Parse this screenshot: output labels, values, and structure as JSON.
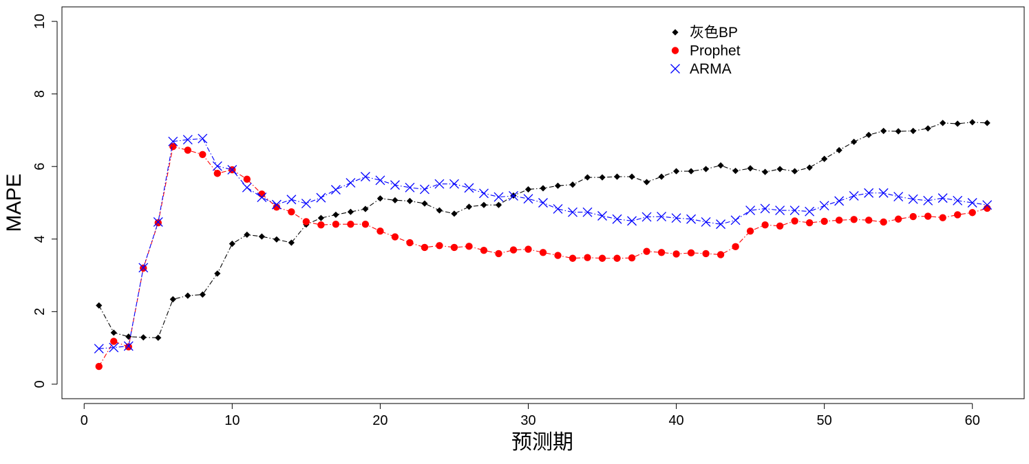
{
  "chart_data": {
    "type": "line",
    "xlabel": "预测期",
    "ylabel": "MAPE",
    "xlim": [
      -1.5,
      63.5
    ],
    "ylim": [
      -0.4,
      10.4
    ],
    "x_ticks": [
      0,
      10,
      20,
      30,
      40,
      50,
      60
    ],
    "y_ticks": [
      0,
      2,
      4,
      6,
      8,
      10
    ],
    "grid": false,
    "legend_position": "top-right",
    "series": [
      {
        "name": "灰色BP",
        "color": "#000000",
        "marker": "diamond",
        "line_style": "dashdot",
        "x": [
          1,
          2,
          3,
          4,
          5,
          6,
          7,
          8,
          9,
          10,
          11,
          12,
          13,
          14,
          15,
          16,
          17,
          18,
          19,
          20,
          21,
          22,
          23,
          24,
          25,
          26,
          27,
          28,
          29,
          30,
          31,
          32,
          33,
          34,
          35,
          36,
          37,
          38,
          39,
          40,
          41,
          42,
          43,
          44,
          45,
          46,
          47,
          48,
          49,
          50,
          51,
          52,
          53,
          54,
          55,
          56,
          57,
          58,
          59,
          60,
          61
        ],
        "values": [
          2.17,
          1.42,
          1.31,
          1.29,
          1.28,
          2.34,
          2.44,
          2.47,
          3.05,
          3.87,
          4.12,
          4.07,
          3.99,
          3.9,
          4.4,
          4.58,
          4.67,
          4.75,
          4.83,
          5.12,
          5.07,
          5.05,
          4.98,
          4.79,
          4.7,
          4.89,
          4.94,
          4.94,
          5.2,
          5.37,
          5.4,
          5.47,
          5.5,
          5.7,
          5.7,
          5.72,
          5.72,
          5.57,
          5.72,
          5.87,
          5.87,
          5.93,
          6.03,
          5.88,
          5.95,
          5.85,
          5.93,
          5.87,
          5.97,
          6.21,
          6.45,
          6.68,
          6.87,
          6.98,
          6.97,
          6.98,
          7.05,
          7.2,
          7.18,
          7.22,
          7.2
        ]
      },
      {
        "name": "Prophet",
        "color": "#ff0000",
        "marker": "circle",
        "line_style": "dashdot",
        "x": [
          1,
          2,
          3,
          4,
          5,
          6,
          7,
          8,
          9,
          10,
          11,
          12,
          13,
          14,
          15,
          16,
          17,
          18,
          19,
          20,
          21,
          22,
          23,
          24,
          25,
          26,
          27,
          28,
          29,
          30,
          31,
          32,
          33,
          34,
          35,
          36,
          37,
          38,
          39,
          40,
          41,
          42,
          43,
          44,
          45,
          46,
          47,
          48,
          49,
          50,
          51,
          52,
          53,
          54,
          55,
          56,
          57,
          58,
          59,
          60,
          61
        ],
        "values": [
          0.49,
          1.18,
          1.03,
          3.2,
          4.45,
          6.55,
          6.45,
          6.33,
          5.81,
          5.91,
          5.65,
          5.24,
          4.88,
          4.75,
          4.48,
          4.39,
          4.41,
          4.41,
          4.41,
          4.22,
          4.06,
          3.9,
          3.77,
          3.82,
          3.77,
          3.8,
          3.69,
          3.6,
          3.7,
          3.72,
          3.63,
          3.55,
          3.47,
          3.49,
          3.47,
          3.47,
          3.48,
          3.66,
          3.63,
          3.59,
          3.62,
          3.6,
          3.57,
          3.79,
          4.22,
          4.39,
          4.36,
          4.5,
          4.45,
          4.49,
          4.52,
          4.54,
          4.52,
          4.47,
          4.55,
          4.62,
          4.63,
          4.59,
          4.67,
          4.73,
          4.85
        ]
      },
      {
        "name": "ARMA",
        "color": "#0000ff",
        "marker": "x",
        "line_style": "dashdot",
        "x": [
          1,
          2,
          3,
          4,
          5,
          6,
          7,
          8,
          9,
          10,
          11,
          12,
          13,
          14,
          15,
          16,
          17,
          18,
          19,
          20,
          21,
          22,
          23,
          24,
          25,
          26,
          27,
          28,
          29,
          30,
          31,
          32,
          33,
          34,
          35,
          36,
          37,
          38,
          39,
          40,
          41,
          42,
          43,
          44,
          45,
          46,
          47,
          48,
          49,
          50,
          51,
          52,
          53,
          54,
          55,
          56,
          57,
          58,
          59,
          60,
          61
        ],
        "values": [
          0.98,
          1.01,
          1.05,
          3.21,
          4.47,
          6.69,
          6.74,
          6.77,
          6.01,
          5.91,
          5.42,
          5.15,
          4.95,
          5.09,
          4.98,
          5.14,
          5.36,
          5.55,
          5.72,
          5.62,
          5.49,
          5.42,
          5.37,
          5.52,
          5.52,
          5.41,
          5.26,
          5.16,
          5.19,
          5.11,
          5.0,
          4.83,
          4.74,
          4.74,
          4.64,
          4.55,
          4.5,
          4.61,
          4.62,
          4.58,
          4.55,
          4.47,
          4.41,
          4.52,
          4.79,
          4.84,
          4.79,
          4.79,
          4.76,
          4.92,
          5.05,
          5.19,
          5.27,
          5.27,
          5.17,
          5.1,
          5.06,
          5.13,
          5.06,
          5.0,
          4.94
        ]
      }
    ]
  }
}
